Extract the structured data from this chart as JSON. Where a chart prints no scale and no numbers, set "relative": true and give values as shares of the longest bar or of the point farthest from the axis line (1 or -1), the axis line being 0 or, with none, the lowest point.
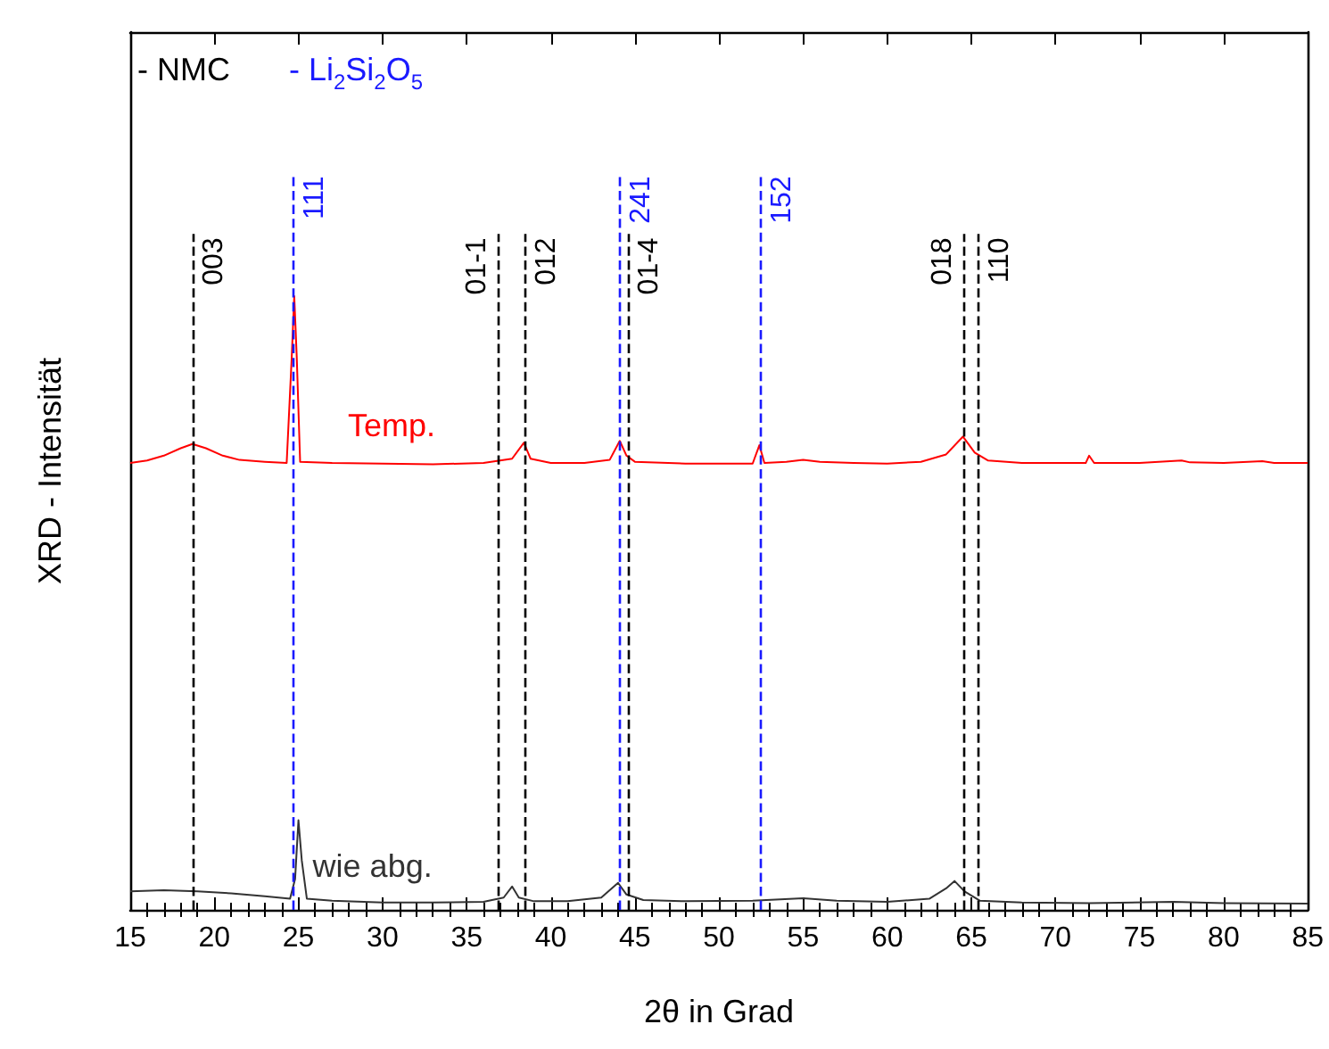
{
  "chart_data": {
    "type": "line",
    "relative": true,
    "xlabel": "2θ in Grad",
    "ylabel": "XRD - Intensität",
    "xlim": [
      15,
      85
    ],
    "xticks": [
      15,
      20,
      25,
      30,
      35,
      40,
      45,
      50,
      55,
      60,
      65,
      70,
      75,
      80,
      85
    ],
    "grid": false,
    "legend": false,
    "marker": "none",
    "annotations": [
      "- NMC",
      "- Li$_{2}$Si$_{2}$O$_{5}$",
      {
        "text": "003",
        "x": 18.7
      },
      {
        "text": "111",
        "x": 24.7
      },
      {
        "text": "01-1",
        "x": 36.9
      },
      {
        "text": "012",
        "x": 38.5
      },
      {
        "text": "241",
        "x": 44.1
      },
      {
        "text": "01-4",
        "x": 44.6
      },
      {
        "text": "152",
        "x": 52.5
      },
      {
        "text": "018",
        "x": 64.6
      },
      {
        "text": "110",
        "x": 65.4
      }
    ],
    "series": [
      {
        "name": "Temp.",
        "color": "#ff0000",
        "x": [
          15,
          16,
          17,
          18,
          18.7,
          19.5,
          20.5,
          21.5,
          23,
          24.3,
          24.6,
          24.75,
          24.9,
          25.1,
          27,
          30,
          33,
          36,
          37.7,
          38.4,
          38.8,
          40,
          42,
          43.5,
          44.1,
          44.5,
          45,
          48,
          52,
          52.4,
          52.7,
          54,
          55,
          56,
          58,
          60,
          62,
          63.5,
          64.5,
          65.2,
          66,
          68,
          71.8,
          72.0,
          72.3,
          75,
          77.5,
          78,
          80,
          82.3,
          83,
          85
        ],
        "values": [
          0.728,
          0.732,
          0.74,
          0.752,
          0.759,
          0.752,
          0.74,
          0.733,
          0.73,
          0.728,
          0.9,
          1.0,
          0.9,
          0.73,
          0.728,
          0.727,
          0.726,
          0.728,
          0.735,
          0.761,
          0.735,
          0.728,
          0.728,
          0.733,
          0.764,
          0.74,
          0.73,
          0.727,
          0.727,
          0.757,
          0.728,
          0.73,
          0.733,
          0.73,
          0.728,
          0.727,
          0.73,
          0.742,
          0.771,
          0.745,
          0.732,
          0.728,
          0.728,
          0.74,
          0.728,
          0.728,
          0.732,
          0.729,
          0.728,
          0.731,
          0.728,
          0.728
        ]
      },
      {
        "name": "wie abg.",
        "color": "#333333",
        "x": [
          15,
          17,
          19,
          21,
          23,
          24.5,
          24.8,
          25.0,
          25.2,
          25.5,
          27,
          30,
          33,
          36,
          37.2,
          37.7,
          38.1,
          39,
          41,
          43,
          44.0,
          44.5,
          45.5,
          48,
          52,
          55,
          57,
          60,
          62.5,
          63.5,
          64.0,
          64.6,
          65.5,
          68,
          72,
          77,
          80,
          85
        ],
        "values": [
          0.03,
          0.032,
          0.03,
          0.027,
          0.022,
          0.018,
          0.05,
          0.146,
          0.08,
          0.018,
          0.015,
          0.012,
          0.012,
          0.013,
          0.02,
          0.038,
          0.02,
          0.014,
          0.014,
          0.02,
          0.044,
          0.025,
          0.016,
          0.014,
          0.015,
          0.019,
          0.015,
          0.013,
          0.018,
          0.035,
          0.047,
          0.03,
          0.015,
          0.012,
          0.011,
          0.013,
          0.011,
          0.01
        ]
      }
    ],
    "ref_lines": [
      {
        "axis": "x",
        "value": 18.7,
        "color": "#000000",
        "line_style": "dashed"
      },
      {
        "axis": "x",
        "value": 24.7,
        "color": "#1a1aff",
        "line_style": "dashed"
      },
      {
        "axis": "x",
        "value": 36.9,
        "color": "#000000",
        "line_style": "dashed"
      },
      {
        "axis": "x",
        "value": 38.5,
        "color": "#000000",
        "line_style": "dashed"
      },
      {
        "axis": "x",
        "value": 44.1,
        "color": "#1a1aff",
        "line_style": "dashed"
      },
      {
        "axis": "x",
        "value": 44.6,
        "color": "#000000",
        "line_style": "dashed"
      },
      {
        "axis": "x",
        "value": 52.5,
        "color": "#1a1aff",
        "line_style": "dashed"
      },
      {
        "axis": "x",
        "value": 64.6,
        "color": "#000000",
        "line_style": "dashed"
      },
      {
        "axis": "x",
        "value": 65.4,
        "color": "#000000",
        "line_style": "dashed"
      }
    ]
  }
}
